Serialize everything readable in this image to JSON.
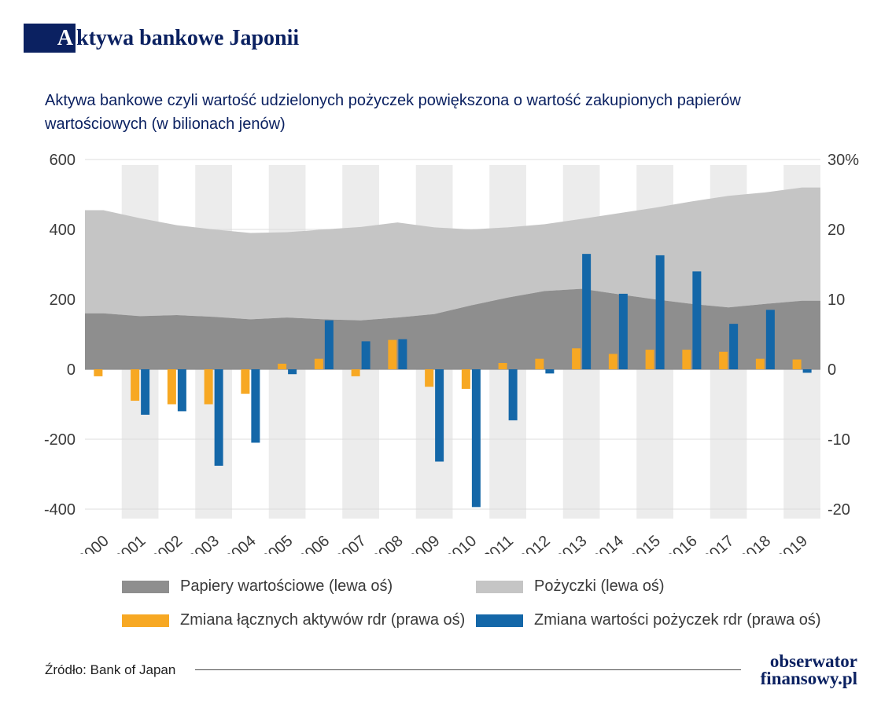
{
  "title": {
    "highlight": "A",
    "rest": "ktywa bankowe Japonii"
  },
  "subtitle": "Aktywa bankowe czyli wartość udzielonych pożyczek powiększona o wartość zakupionych papierów wartościowych (w bilionach jenów)",
  "chart_data": {
    "type": "combo",
    "categories": [
      "2000",
      "2001",
      "2002",
      "2003",
      "2004",
      "2005",
      "2006",
      "2007",
      "2008",
      "2009",
      "2010",
      "2011",
      "2012",
      "2013",
      "2014",
      "2015",
      "2016",
      "2017",
      "2018",
      "2019"
    ],
    "left_axis": {
      "ticks": [
        600,
        400,
        200,
        0,
        -200,
        -400
      ],
      "range": [
        -400,
        600
      ]
    },
    "right_axis": {
      "ticks": [
        "30%",
        "20",
        "10",
        "0",
        "-10",
        "-20"
      ],
      "range": [
        -20,
        30
      ]
    },
    "grid": true,
    "legend_position": "bottom",
    "style": {
      "stripe": "#ececec",
      "gridline": "#dcdcdc",
      "zero_line": "#8d8d8d"
    },
    "series": [
      {
        "name": "Papiery wartościowe (lewa oś)",
        "type": "area",
        "axis": "left",
        "color": "#8e8e8e",
        "values": [
          160,
          152,
          155,
          150,
          143,
          148,
          143,
          140,
          148,
          158,
          183,
          205,
          224,
          230,
          215,
          200,
          187,
          177,
          187,
          196
        ]
      },
      {
        "name": "Pożyczki (lewa oś)",
        "type": "area-stacked",
        "axis": "left",
        "color": "#c5c5c5",
        "values": [
          295,
          280,
          257,
          250,
          247,
          244,
          257,
          267,
          272,
          248,
          217,
          201,
          191,
          200,
          231,
          262,
          293,
          319,
          319,
          324
        ]
      },
      {
        "name": "Zmiana łącznych aktywów rdr (prawa oś)",
        "type": "bar",
        "axis": "right",
        "color": "#f7a823",
        "values": [
          -1,
          -4.5,
          -5,
          -5,
          -3.5,
          0.8,
          1.5,
          -1,
          4.2,
          -2.5,
          -2.8,
          0.9,
          1.5,
          3,
          2.2,
          2.8,
          2.8,
          2.5,
          1.5,
          1.4
        ]
      },
      {
        "name": "Zmiana wartości pożyczek rdr (prawa oś)",
        "type": "bar",
        "axis": "right",
        "color": "#1467a8",
        "values": [
          0,
          -6.5,
          -6,
          -13.8,
          -10.5,
          -0.7,
          7,
          4,
          4.3,
          -13.2,
          -19.7,
          -7.3,
          -0.6,
          16.5,
          10.8,
          16.3,
          14,
          6.5,
          8.5,
          -0.5
        ]
      }
    ]
  },
  "legend": [
    {
      "label": "Papiery wartościowe (lewa oś)",
      "color": "#8e8e8e"
    },
    {
      "label": "Pożyczki (lewa oś)",
      "color": "#c5c5c5"
    },
    {
      "label": "Zmiana łącznych aktywów rdr (prawa oś)",
      "color": "#f7a823"
    },
    {
      "label": "Zmiana wartości pożyczek rdr (prawa oś)",
      "color": "#1467a8"
    }
  ],
  "source": "Źródło: Bank of Japan",
  "logo": {
    "line1": "obserwator",
    "line2": "finansowy.pl"
  }
}
